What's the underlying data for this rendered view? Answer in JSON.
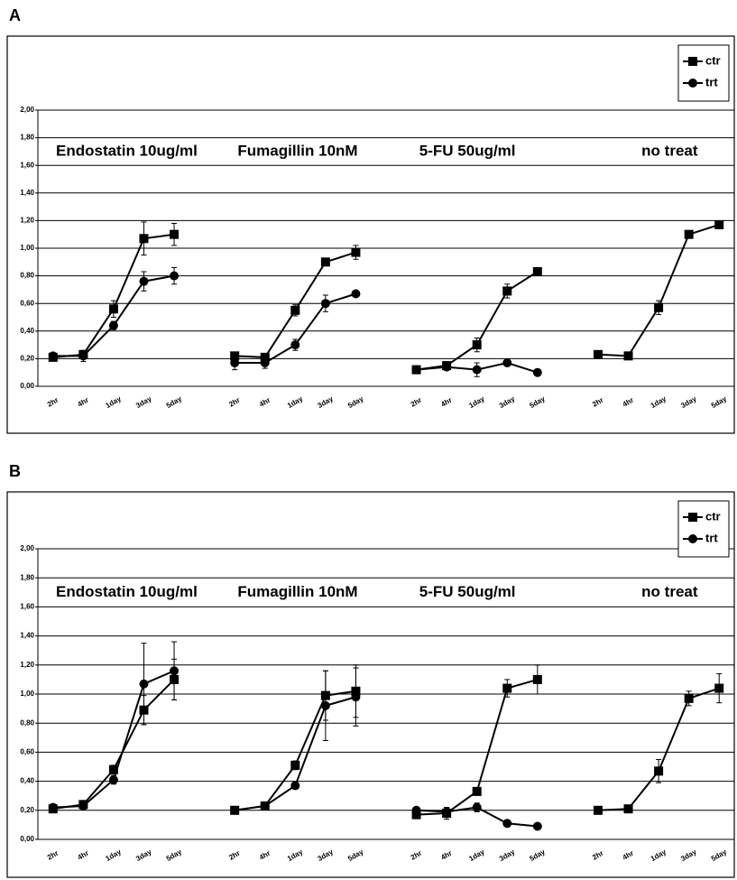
{
  "chart_data": [
    {
      "type": "line",
      "title": "A",
      "categories": [
        "2hr",
        "4hr",
        "1day",
        "3day",
        "5day",
        null,
        "2hr",
        "4hr",
        "1day",
        "3day",
        "5day",
        null,
        "2hr",
        "4hr",
        "1day",
        "3day",
        "5day",
        null,
        "2hr",
        "4hr",
        "1day",
        "3day",
        "5day"
      ],
      "annotations": [
        "Endostatin 10ug/ml",
        "Fumagillin 10nM",
        "5-FU 50ug/ml",
        "no treat"
      ],
      "series": [
        {
          "name": "ctr",
          "color": "#000000",
          "marker": "square",
          "values": [
            0.21,
            0.23,
            0.56,
            1.07,
            1.1,
            null,
            0.22,
            0.21,
            0.55,
            0.9,
            0.97,
            null,
            0.12,
            0.15,
            0.3,
            0.69,
            0.83,
            null,
            0.23,
            0.22,
            0.57,
            1.1,
            1.17
          ],
          "errors": [
            0.02,
            0.02,
            0.06,
            0.12,
            0.08,
            null,
            0.02,
            0.02,
            0.04,
            0.02,
            0.05,
            null,
            0.01,
            0.02,
            0.05,
            0.05,
            0.02,
            null,
            0.02,
            0.01,
            0.05,
            0.02,
            0.02
          ]
        },
        {
          "name": "trt",
          "color": "#000000",
          "marker": "circle",
          "values": [
            0.22,
            0.22,
            0.44,
            0.76,
            0.8,
            null,
            0.17,
            0.17,
            0.3,
            0.6,
            0.67,
            null,
            0.12,
            0.14,
            0.12,
            0.17,
            0.1,
            null,
            null,
            null,
            null,
            null,
            null
          ],
          "errors": [
            0.02,
            0.04,
            0.03,
            0.07,
            0.06,
            null,
            0.05,
            0.04,
            0.04,
            0.06,
            0.01,
            null,
            0.01,
            0.02,
            0.05,
            0.02,
            0.01,
            null,
            null,
            null,
            null,
            null,
            null
          ]
        }
      ],
      "ylim": [
        0,
        2
      ],
      "yticks": [
        {
          "value": 0,
          "label": "0,00"
        },
        {
          "value": 0.2,
          "label": "0,20"
        },
        {
          "value": 0.4,
          "label": "0,40"
        },
        {
          "value": 0.6,
          "label": "0,60"
        },
        {
          "value": 0.8,
          "label": "0,80"
        },
        {
          "value": 1,
          "label": "1,00"
        },
        {
          "value": 1.2,
          "label": "1,20"
        },
        {
          "value": 1.4,
          "label": "1,40"
        },
        {
          "value": 1.6,
          "label": "1,60"
        },
        {
          "value": 1.8,
          "label": "1,80"
        },
        {
          "value": 2,
          "label": "2,00"
        }
      ],
      "grid": true,
      "legend": "upper right"
    },
    {
      "type": "line",
      "title": "B",
      "categories": [
        "2hr",
        "4hr",
        "1day",
        "3day",
        "5day",
        null,
        "2hr",
        "4hr",
        "1day",
        "3day",
        "5day",
        null,
        "2hr",
        "4hr",
        "1day",
        "3day",
        "5day",
        null,
        "2hr",
        "4hr",
        "1day",
        "3day",
        "5day"
      ],
      "annotations": [
        "Endostatin 10ug/ml",
        "Fumagillin 10nM",
        "5-FU 50ug/ml",
        "no treat"
      ],
      "series": [
        {
          "name": "ctr",
          "color": "#000000",
          "marker": "square",
          "values": [
            0.21,
            0.24,
            0.48,
            0.89,
            1.1,
            null,
            0.2,
            0.23,
            0.51,
            0.99,
            1.02,
            null,
            0.17,
            0.18,
            0.33,
            1.04,
            1.1,
            null,
            0.2,
            0.21,
            0.47,
            0.97,
            1.04
          ],
          "errors": [
            0.02,
            0.02,
            0.03,
            0.1,
            0.14,
            null,
            0.01,
            0.02,
            0.03,
            0.17,
            0.18,
            null,
            0.02,
            0.04,
            0.02,
            0.06,
            0.1,
            null,
            0.01,
            0.01,
            0.08,
            0.05,
            0.1
          ]
        },
        {
          "name": "trt",
          "color": "#000000",
          "marker": "circle",
          "values": [
            0.22,
            0.23,
            0.41,
            1.07,
            1.16,
            null,
            0.2,
            0.23,
            0.37,
            0.92,
            0.98,
            null,
            0.2,
            0.19,
            0.22,
            0.11,
            0.09,
            null,
            null,
            null,
            null,
            null,
            null
          ],
          "errors": [
            0.02,
            0.02,
            0.03,
            0.28,
            0.2,
            null,
            0.01,
            0.02,
            0.02,
            0.24,
            0.2,
            null,
            0.02,
            0.03,
            0.03,
            0.01,
            0.01,
            null,
            null,
            null,
            null,
            null,
            null
          ]
        }
      ],
      "ylim": [
        0,
        2
      ],
      "yticks": [
        {
          "value": 0,
          "label": "0,00"
        },
        {
          "value": 0.2,
          "label": "0,20"
        },
        {
          "value": 0.4,
          "label": "0,40"
        },
        {
          "value": 0.6,
          "label": "0,60"
        },
        {
          "value": 0.8,
          "label": "0,80"
        },
        {
          "value": 1,
          "label": "1,00"
        },
        {
          "value": 1.2,
          "label": "1,20"
        },
        {
          "value": 1.4,
          "label": "1,40"
        },
        {
          "value": 1.6,
          "label": "1,60"
        },
        {
          "value": 1.8,
          "label": "1,80"
        },
        {
          "value": 2,
          "label": "2,00"
        }
      ],
      "grid": true,
      "legend": "upper right"
    }
  ]
}
